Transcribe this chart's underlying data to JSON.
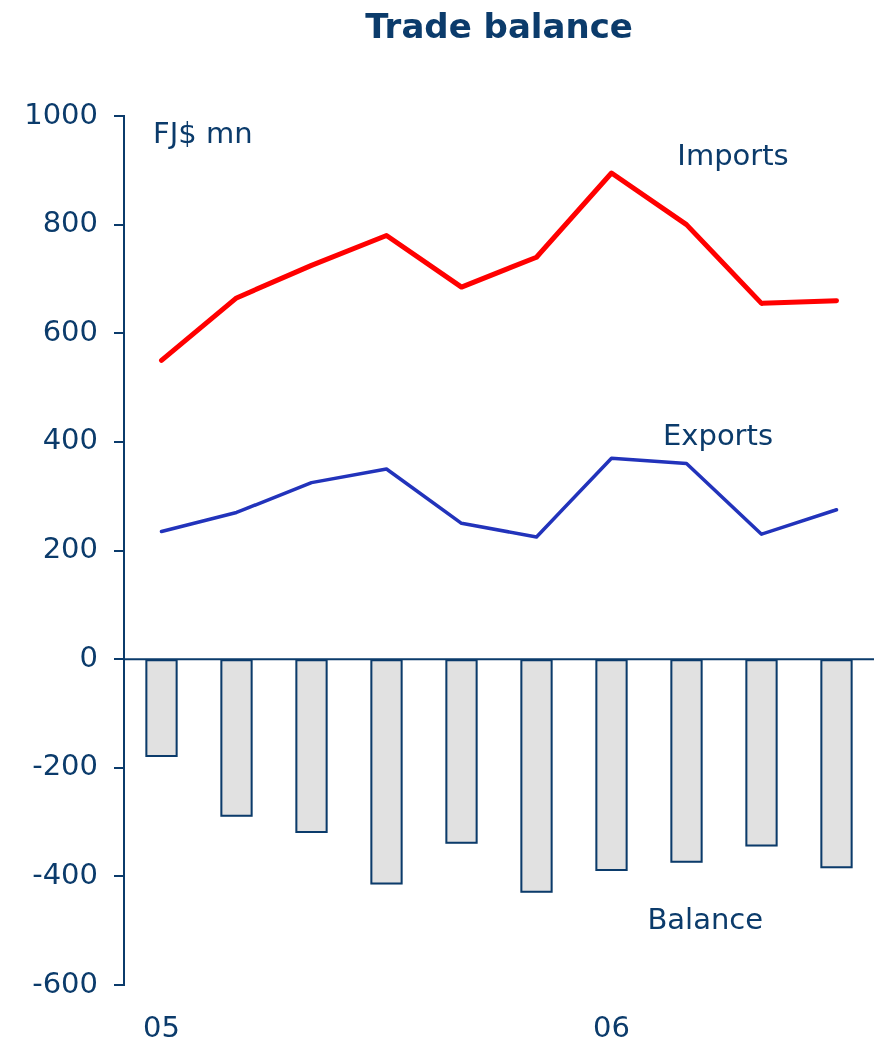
{
  "chart_data": {
    "type": "bar",
    "title": "Trade balance",
    "ylabel": "FJ$ mn",
    "categories": [
      "05",
      null,
      null,
      null,
      null,
      null,
      "06",
      null,
      null,
      null
    ],
    "series": [
      {
        "name": "Imports",
        "type": "line",
        "color": "#ff0000",
        "values": [
          550,
          665,
          725,
          780,
          685,
          740,
          895,
          800,
          655,
          660
        ]
      },
      {
        "name": "Exports",
        "type": "line",
        "color": "#2233bb",
        "values": [
          235,
          270,
          325,
          350,
          250,
          225,
          370,
          360,
          230,
          275
        ]
      },
      {
        "name": "Balance",
        "color": "#e1e1e1",
        "values": [
          -180,
          -290,
          -320,
          -415,
          -340,
          -430,
          -390,
          -375,
          -345,
          -385
        ]
      }
    ],
    "ylim": [
      -600,
      1000
    ],
    "yticks": [
      -600,
      -400,
      -200,
      0,
      200,
      400,
      600,
      800,
      1000
    ],
    "marker": "none",
    "ref_lines": [
      {
        "axis": "y",
        "value": 0,
        "color": "#0b3b6b"
      }
    ]
  }
}
